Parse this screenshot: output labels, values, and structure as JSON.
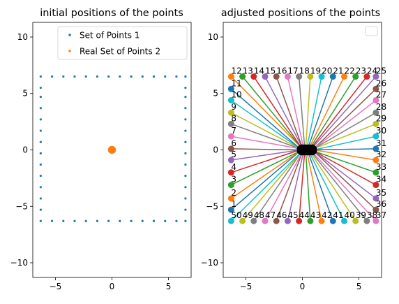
{
  "chart_data": [
    {
      "type": "scatter",
      "title": "initial positions of the points",
      "xlabel": "",
      "ylabel": "",
      "xlim": [
        -7,
        7
      ],
      "ylim": [
        -11.3,
        11.3
      ],
      "xticks": [
        -5,
        0,
        5
      ],
      "yticks": [
        -10,
        -5,
        0,
        5,
        10
      ],
      "xtick_labels": [
        "−5",
        "0",
        "5"
      ],
      "ytick_labels": [
        "−10",
        "−5",
        "0",
        "5",
        "10"
      ],
      "grid": false,
      "legend_position": "top-right",
      "series": [
        {
          "name": "Set of Points 1",
          "color": "#1f77b4",
          "description_of_layout": "square perimeter",
          "points": [
            [
              -6.3,
              -6.3
            ],
            [
              -5.3,
              -6.3
            ],
            [
              -4.3,
              -6.3
            ],
            [
              -3.3,
              -6.3
            ],
            [
              -2.3,
              -6.3
            ],
            [
              -1.3,
              -6.3
            ],
            [
              -0.3,
              -6.3
            ],
            [
              0.7,
              -6.3
            ],
            [
              1.7,
              -6.3
            ],
            [
              2.7,
              -6.3
            ],
            [
              3.7,
              -6.3
            ],
            [
              4.7,
              -6.3
            ],
            [
              5.7,
              -6.3
            ],
            [
              6.5,
              -6.3
            ],
            [
              -6.3,
              6.5
            ],
            [
              -5.3,
              6.5
            ],
            [
              -4.3,
              6.5
            ],
            [
              -3.3,
              6.5
            ],
            [
              -2.3,
              6.5
            ],
            [
              -1.3,
              6.5
            ],
            [
              -0.3,
              6.5
            ],
            [
              0.7,
              6.5
            ],
            [
              1.7,
              6.5
            ],
            [
              2.7,
              6.5
            ],
            [
              3.7,
              6.5
            ],
            [
              4.7,
              6.5
            ],
            [
              5.7,
              6.5
            ],
            [
              6.5,
              6.5
            ],
            [
              -6.3,
              -5.3
            ],
            [
              -6.3,
              -4.3
            ],
            [
              -6.3,
              -3.3
            ],
            [
              -6.3,
              -2.3
            ],
            [
              -6.3,
              -1.3
            ],
            [
              -6.3,
              -0.3
            ],
            [
              -6.3,
              0.7
            ],
            [
              -6.3,
              1.7
            ],
            [
              -6.3,
              2.7
            ],
            [
              -6.3,
              3.7
            ],
            [
              -6.3,
              4.7
            ],
            [
              -6.3,
              5.5
            ],
            [
              6.5,
              -5.3
            ],
            [
              6.5,
              -4.3
            ],
            [
              6.5,
              -3.3
            ],
            [
              6.5,
              -2.3
            ],
            [
              6.5,
              -1.3
            ],
            [
              6.5,
              -0.3
            ],
            [
              6.5,
              0.7
            ],
            [
              6.5,
              1.7
            ],
            [
              6.5,
              2.7
            ],
            [
              6.5,
              3.7
            ],
            [
              6.5,
              4.7
            ],
            [
              6.5,
              5.5
            ]
          ]
        },
        {
          "name": "Real Set of Points 2",
          "color": "#ff7f0e",
          "points": [
            [
              0.0,
              0.25
            ],
            [
              0.12,
              0.22
            ],
            [
              0.22,
              0.12
            ],
            [
              0.25,
              0.0
            ],
            [
              0.22,
              -0.12
            ],
            [
              0.12,
              -0.22
            ],
            [
              0.0,
              -0.25
            ],
            [
              -0.12,
              -0.22
            ],
            [
              -0.22,
              -0.12
            ],
            [
              -0.25,
              0.0
            ],
            [
              -0.22,
              0.12
            ],
            [
              -0.12,
              0.22
            ],
            [
              0.05,
              0.15
            ],
            [
              0.1,
              0.05
            ],
            [
              -0.05,
              0.1
            ],
            [
              -0.1,
              -0.05
            ],
            [
              0.05,
              -0.1
            ],
            [
              0.15,
              0.0
            ],
            [
              -0.15,
              0.05
            ],
            [
              0.0,
              0.0
            ]
          ]
        }
      ]
    },
    {
      "type": "line",
      "title": "adjusted positions of the points",
      "xlabel": "",
      "ylabel": "",
      "xlim": [
        -7,
        7
      ],
      "ylim": [
        -11.3,
        11.3
      ],
      "xticks": [
        -5,
        0,
        5
      ],
      "yticks": [
        -10,
        -5,
        0,
        5,
        10
      ],
      "xtick_labels": [
        "−5",
        "0",
        "5"
      ],
      "ytick_labels": [
        "−10",
        "−5",
        "0",
        "5",
        "10"
      ],
      "grid": false,
      "legend_position": "top-right",
      "center_cluster_color": "#000000",
      "palette": [
        "#1f77b4",
        "#ff7f0e",
        "#2ca02c",
        "#d62728",
        "#9467bd",
        "#8c564b",
        "#e377c2",
        "#7f7f7f",
        "#bcbd22",
        "#17becf"
      ],
      "series": [
        {
          "label": "1",
          "x": -6.3,
          "y": -5.3,
          "end_x": -0.2,
          "end_y": -0.1
        },
        {
          "label": "2",
          "x": -6.3,
          "y": -4.3,
          "end_x": -0.2,
          "end_y": -0.1
        },
        {
          "label": "3",
          "x": -6.3,
          "y": -3.1,
          "end_x": -0.2,
          "end_y": -0.1
        },
        {
          "label": "4",
          "x": -6.3,
          "y": -2.0,
          "end_x": -0.2,
          "end_y": 0.0
        },
        {
          "label": "5",
          "x": -6.3,
          "y": -0.9,
          "end_x": -0.2,
          "end_y": 0.0
        },
        {
          "label": "6",
          "x": -6.3,
          "y": 0.1,
          "end_x": -0.2,
          "end_y": 0.0
        },
        {
          "label": "7",
          "x": -6.3,
          "y": 1.2,
          "end_x": -0.2,
          "end_y": 0.1
        },
        {
          "label": "8",
          "x": -6.3,
          "y": 2.3,
          "end_x": -0.2,
          "end_y": 0.1
        },
        {
          "label": "9",
          "x": -6.3,
          "y": 3.3,
          "end_x": -0.2,
          "end_y": 0.1
        },
        {
          "label": "10",
          "x": -6.3,
          "y": 4.4,
          "end_x": -0.2,
          "end_y": 0.1
        },
        {
          "label": "11",
          "x": -6.3,
          "y": 5.4,
          "end_x": -0.2,
          "end_y": 0.1
        },
        {
          "label": "12",
          "x": -6.3,
          "y": 6.5,
          "end_x": -0.1,
          "end_y": 0.2
        },
        {
          "label": "13",
          "x": -5.3,
          "y": 6.5,
          "end_x": -0.1,
          "end_y": 0.2
        },
        {
          "label": "14",
          "x": -4.3,
          "y": 6.5,
          "end_x": -0.1,
          "end_y": 0.2
        },
        {
          "label": "15",
          "x": -3.3,
          "y": 6.5,
          "end_x": 0.0,
          "end_y": 0.2
        },
        {
          "label": "16",
          "x": -2.3,
          "y": 6.5,
          "end_x": 0.0,
          "end_y": 0.2
        },
        {
          "label": "17",
          "x": -1.3,
          "y": 6.5,
          "end_x": 0.1,
          "end_y": 0.2
        },
        {
          "label": "18",
          "x": -0.3,
          "y": 6.5,
          "end_x": 0.2,
          "end_y": 0.2
        },
        {
          "label": "19",
          "x": 0.7,
          "y": 6.5,
          "end_x": 0.3,
          "end_y": 0.2
        },
        {
          "label": "20",
          "x": 1.7,
          "y": 6.5,
          "end_x": 0.4,
          "end_y": 0.2
        },
        {
          "label": "21",
          "x": 2.7,
          "y": 6.5,
          "end_x": 0.5,
          "end_y": 0.2
        },
        {
          "label": "22",
          "x": 3.7,
          "y": 6.5,
          "end_x": 0.6,
          "end_y": 0.2
        },
        {
          "label": "23",
          "x": 4.7,
          "y": 6.5,
          "end_x": 0.7,
          "end_y": 0.2
        },
        {
          "label": "24",
          "x": 5.7,
          "y": 6.5,
          "end_x": 0.8,
          "end_y": 0.2
        },
        {
          "label": "25",
          "x": 6.5,
          "y": 6.5,
          "end_x": 0.9,
          "end_y": 0.2
        },
        {
          "label": "26",
          "x": 6.5,
          "y": 5.4,
          "end_x": 1.0,
          "end_y": 0.1
        },
        {
          "label": "27",
          "x": 6.5,
          "y": 4.4,
          "end_x": 1.0,
          "end_y": 0.1
        },
        {
          "label": "28",
          "x": 6.5,
          "y": 3.3,
          "end_x": 1.0,
          "end_y": 0.1
        },
        {
          "label": "29",
          "x": 6.5,
          "y": 2.3,
          "end_x": 1.0,
          "end_y": 0.1
        },
        {
          "label": "30",
          "x": 6.5,
          "y": 1.2,
          "end_x": 1.0,
          "end_y": 0.0
        },
        {
          "label": "31",
          "x": 6.5,
          "y": 0.1,
          "end_x": 1.0,
          "end_y": 0.0
        },
        {
          "label": "32",
          "x": 6.5,
          "y": -0.9,
          "end_x": 1.0,
          "end_y": 0.0
        },
        {
          "label": "33",
          "x": 6.5,
          "y": -2.0,
          "end_x": 1.0,
          "end_y": -0.1
        },
        {
          "label": "34",
          "x": 6.5,
          "y": -3.1,
          "end_x": 1.0,
          "end_y": -0.1
        },
        {
          "label": "35",
          "x": 6.5,
          "y": -4.3,
          "end_x": 1.0,
          "end_y": -0.1
        },
        {
          "label": "36",
          "x": 6.5,
          "y": -5.3,
          "end_x": 1.0,
          "end_y": -0.1
        },
        {
          "label": "37",
          "x": 6.5,
          "y": -6.3,
          "end_x": 0.9,
          "end_y": -0.2
        },
        {
          "label": "38",
          "x": 5.7,
          "y": -6.3,
          "end_x": 0.8,
          "end_y": -0.2
        },
        {
          "label": "39",
          "x": 4.7,
          "y": -6.3,
          "end_x": 0.7,
          "end_y": -0.2
        },
        {
          "label": "40",
          "x": 3.7,
          "y": -6.3,
          "end_x": 0.6,
          "end_y": -0.2
        },
        {
          "label": "41",
          "x": 2.7,
          "y": -6.3,
          "end_x": 0.5,
          "end_y": -0.2
        },
        {
          "label": "42",
          "x": 1.7,
          "y": -6.3,
          "end_x": 0.4,
          "end_y": -0.2
        },
        {
          "label": "43",
          "x": 0.7,
          "y": -6.3,
          "end_x": 0.3,
          "end_y": -0.2
        },
        {
          "label": "44",
          "x": -0.3,
          "y": -6.3,
          "end_x": 0.2,
          "end_y": -0.2
        },
        {
          "label": "45",
          "x": -1.3,
          "y": -6.3,
          "end_x": 0.1,
          "end_y": -0.2
        },
        {
          "label": "46",
          "x": -2.3,
          "y": -6.3,
          "end_x": 0.0,
          "end_y": -0.2
        },
        {
          "label": "47",
          "x": -3.3,
          "y": -6.3,
          "end_x": 0.0,
          "end_y": -0.2
        },
        {
          "label": "48",
          "x": -4.3,
          "y": -6.3,
          "end_x": -0.1,
          "end_y": -0.2
        },
        {
          "label": "49",
          "x": -5.3,
          "y": -6.3,
          "end_x": -0.1,
          "end_y": -0.2
        },
        {
          "label": "50",
          "x": -6.3,
          "y": -6.3,
          "end_x": -0.1,
          "end_y": -0.2
        }
      ]
    }
  ]
}
